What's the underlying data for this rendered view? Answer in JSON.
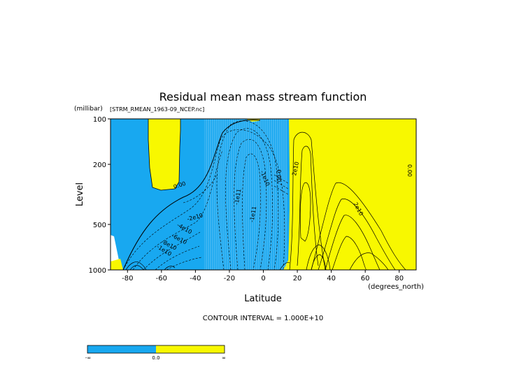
{
  "chart_data": {
    "type": "contour",
    "title": "Residual mean mass stream function",
    "subtitle": "[STRM_RMEAN_1963-09_NCEP.nc]",
    "xlabel": "Latitude",
    "ylabel": "Level",
    "x_unit": "(degrees_north)",
    "y_unit": "(millibar)",
    "xlim": [
      -90,
      90
    ],
    "ylim": [
      1000,
      100
    ],
    "y_scale": "log",
    "x_ticks": [
      -80,
      -60,
      -40,
      -20,
      0,
      20,
      40,
      60,
      80
    ],
    "y_ticks": [
      100,
      200,
      500,
      1000
    ],
    "contour_interval_text": "CONTOUR INTERVAL = 1.000E+10",
    "colors": {
      "negative": "#18a8f0",
      "positive": "#f8f800",
      "outside": "#ffffff"
    },
    "contour_labels": [
      {
        "text": "0.00",
        "x": -49,
        "y": 282,
        "angle": -18
      },
      {
        "text": "-2e10",
        "x": -40,
        "y": 460,
        "angle": -15
      },
      {
        "text": "-4e10",
        "x": -47,
        "y": 545,
        "angle": 30
      },
      {
        "text": "-6e10",
        "x": -50,
        "y": 640,
        "angle": 28
      },
      {
        "text": "-8e10",
        "x": -56,
        "y": 700,
        "angle": 28
      },
      {
        "text": "-1e10",
        "x": -59,
        "y": 760,
        "angle": 32
      },
      {
        "text": "-1e11",
        "x": -14,
        "y": 330,
        "angle": -80
      },
      {
        "text": "-1e11",
        "x": -5,
        "y": 430,
        "angle": -80
      },
      {
        "text": "-1e10",
        "x": 0,
        "y": 250,
        "angle": 68
      },
      {
        "text": "0.00",
        "x": 8,
        "y": 238,
        "angle": 90
      },
      {
        "text": "2e10",
        "x": 20,
        "y": 215,
        "angle": -78
      },
      {
        "text": "2e10",
        "x": 55,
        "y": 400,
        "angle": 62
      },
      {
        "text": "0.00",
        "x": 85,
        "y": 220,
        "angle": 90
      }
    ],
    "colorbar": {
      "labels": [
        "-∞",
        "0.0",
        "∞"
      ]
    }
  }
}
